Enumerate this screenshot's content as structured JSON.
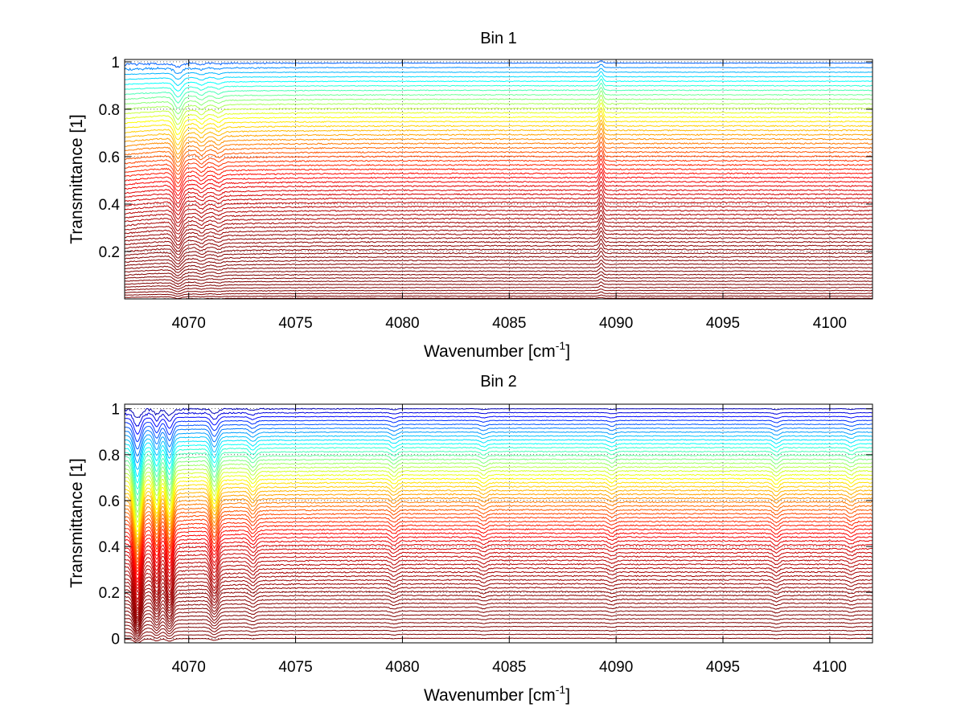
{
  "colors": {
    "axis": "#000000",
    "grid": "#000000",
    "background": "#ffffff",
    "colormap": [
      "#800000",
      "#b01800",
      "#e05000",
      "#ff8c00",
      "#ffc800",
      "#e8e600",
      "#70e890",
      "#00c8e0",
      "#0060e0",
      "#0000a0"
    ]
  },
  "chart_data": [
    {
      "type": "line",
      "title": "Bin 1",
      "xlabel": "Wavenumber [cm",
      "xlabel_sup": "-1",
      "xlabel_tail": "]",
      "ylabel": "Transmittance [1]",
      "xlim": [
        4067,
        4102
      ],
      "ylim": [
        0,
        1.01
      ],
      "xticks": [
        4070,
        4075,
        4080,
        4085,
        4090,
        4095,
        4100
      ],
      "xtick_labels": [
        "4070",
        "4075",
        "4080",
        "4085",
        "4090",
        "4095",
        "4100"
      ],
      "yticks": [
        0.2,
        0.4,
        0.6,
        0.8,
        1
      ],
      "ytick_labels": [
        "0.2",
        "0.4",
        "0.6",
        "0.8",
        "1"
      ],
      "grid": true,
      "legend": "none",
      "series_count": 60,
      "baseline_range": [
        0.003,
        0.995
      ],
      "colormap": "jet-reversed",
      "features": [
        {
          "x": 4069.5,
          "depth": 0.06,
          "width": 0.25
        },
        {
          "x": 4070.6,
          "depth": 0.02,
          "width": 0.2
        },
        {
          "x": 4071.4,
          "depth": 0.015,
          "width": 0.2
        },
        {
          "x": 4089.3,
          "depth": -0.04,
          "width": 0.12
        }
      ]
    },
    {
      "type": "line",
      "title": "Bin 2",
      "xlabel": "Wavenumber [cm",
      "xlabel_sup": "-1",
      "xlabel_tail": "]",
      "ylabel": "Transmittance [1]",
      "xlim": [
        4067,
        4102
      ],
      "ylim": [
        -0.02,
        1.02
      ],
      "xticks": [
        4070,
        4075,
        4080,
        4085,
        4090,
        4095,
        4100
      ],
      "xtick_labels": [
        "4070",
        "4075",
        "4080",
        "4085",
        "4090",
        "4095",
        "4100"
      ],
      "yticks": [
        0,
        0.2,
        0.4,
        0.6,
        0.8,
        1
      ],
      "ytick_labels": [
        "0",
        "0.2",
        "0.4",
        "0.6",
        "0.8",
        "1"
      ],
      "grid": true,
      "legend": "none",
      "series_count": 60,
      "baseline_range": [
        0.0,
        1.0
      ],
      "colormap": "jet-reversed",
      "features": [
        {
          "x": 4067.6,
          "depth": 0.18,
          "width": 0.22
        },
        {
          "x": 4068.5,
          "depth": 0.1,
          "width": 0.18
        },
        {
          "x": 4069.1,
          "depth": 0.12,
          "width": 0.2
        },
        {
          "x": 4071.2,
          "depth": 0.09,
          "width": 0.22
        },
        {
          "x": 4073.0,
          "depth": 0.03,
          "width": 0.2
        },
        {
          "x": 4079.6,
          "depth": 0.02,
          "width": 0.2
        },
        {
          "x": 4083.8,
          "depth": 0.015,
          "width": 0.2
        },
        {
          "x": 4089.8,
          "depth": 0.015,
          "width": 0.2
        },
        {
          "x": 4097.5,
          "depth": 0.02,
          "width": 0.2
        },
        {
          "x": 4101.0,
          "depth": 0.015,
          "width": 0.2
        }
      ]
    }
  ]
}
